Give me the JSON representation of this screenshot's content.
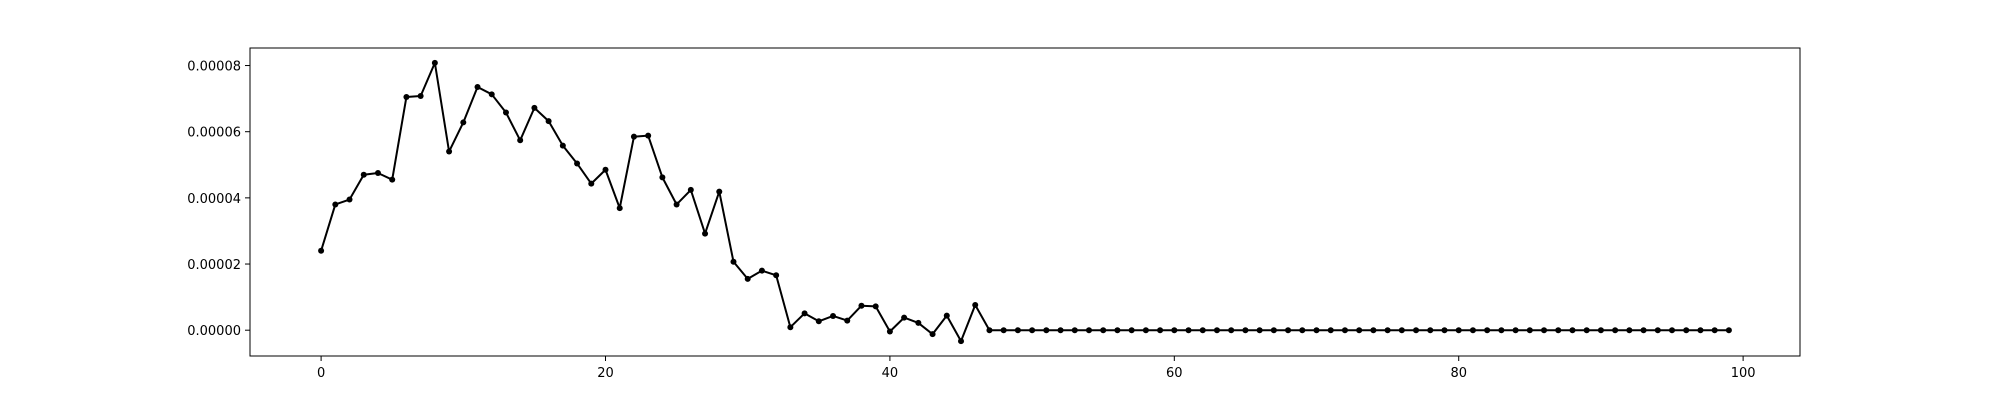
{
  "chart_data": {
    "type": "line",
    "title": "",
    "xlabel": "",
    "ylabel": "",
    "xlim": [
      -5,
      104
    ],
    "ylim": [
      -7.8e-06,
      8.53e-05
    ],
    "grid": false,
    "line_color": "#000000",
    "marker": "circle",
    "x_ticks": [
      {
        "value": 0,
        "label": "0"
      },
      {
        "value": 20,
        "label": "20"
      },
      {
        "value": 40,
        "label": "40"
      },
      {
        "value": 60,
        "label": "60"
      },
      {
        "value": 80,
        "label": "80"
      },
      {
        "value": 100,
        "label": "100"
      }
    ],
    "y_ticks": [
      {
        "value": 0,
        "label": "0.00000"
      },
      {
        "value": 2e-05,
        "label": "0.00002"
      },
      {
        "value": 4e-05,
        "label": "0.00004"
      },
      {
        "value": 6e-05,
        "label": "0.00006"
      },
      {
        "value": 8e-05,
        "label": "0.00008"
      }
    ],
    "series": [
      {
        "x": [
          0,
          1,
          2,
          3,
          4,
          5,
          6,
          7,
          8,
          9,
          10,
          11,
          12,
          13,
          14,
          15,
          16,
          17,
          18,
          19,
          20,
          21,
          22,
          23,
          24,
          25,
          26,
          27,
          28,
          29,
          30,
          31,
          32,
          33,
          34,
          35,
          36,
          37,
          38,
          39,
          40,
          41,
          42,
          43,
          44,
          45,
          46,
          47,
          48,
          49,
          50,
          51,
          52,
          53,
          54,
          55,
          56,
          57,
          58,
          59,
          60,
          61,
          62,
          63,
          64,
          65,
          66,
          67,
          68,
          69,
          70,
          71,
          72,
          73,
          74,
          75,
          76,
          77,
          78,
          79,
          80,
          81,
          82,
          83,
          84,
          85,
          86,
          87,
          88,
          89,
          90,
          91,
          92,
          93,
          94,
          95,
          96,
          97,
          98,
          99
        ],
        "values": [
          2.4e-05,
          3.8e-05,
          3.95e-05,
          4.7e-05,
          4.75e-05,
          4.55e-05,
          7.05e-05,
          7.08e-05,
          8.08e-05,
          5.4e-05,
          6.28e-05,
          7.35e-05,
          7.13e-05,
          6.58e-05,
          5.74e-05,
          6.72e-05,
          6.32e-05,
          5.58e-05,
          5.04e-05,
          4.43e-05,
          4.85e-05,
          3.69e-05,
          5.85e-05,
          5.88e-05,
          4.62e-05,
          3.8e-05,
          4.24e-05,
          2.92e-05,
          4.19e-05,
          2.07e-05,
          1.55e-05,
          1.8e-05,
          1.66e-05,
          9e-07,
          5.1e-06,
          2.7e-06,
          4.3e-06,
          2.9e-06,
          7.4e-06,
          7.2e-06,
          -4e-07,
          3.8e-06,
          2.2e-06,
          -1.2e-06,
          4.4e-06,
          -3.3e-06,
          7.6e-06,
          0,
          0,
          0,
          0,
          0,
          0,
          0,
          0,
          0,
          0,
          0,
          0,
          0,
          0,
          0,
          0,
          0,
          0,
          0,
          0,
          0,
          0,
          0,
          0,
          0,
          0,
          0,
          0,
          0,
          0,
          0,
          0,
          0,
          0,
          0,
          0,
          0,
          0,
          0,
          0,
          0,
          0,
          0,
          0,
          0,
          0,
          0,
          0,
          0,
          0,
          0,
          0,
          0
        ]
      }
    ]
  }
}
